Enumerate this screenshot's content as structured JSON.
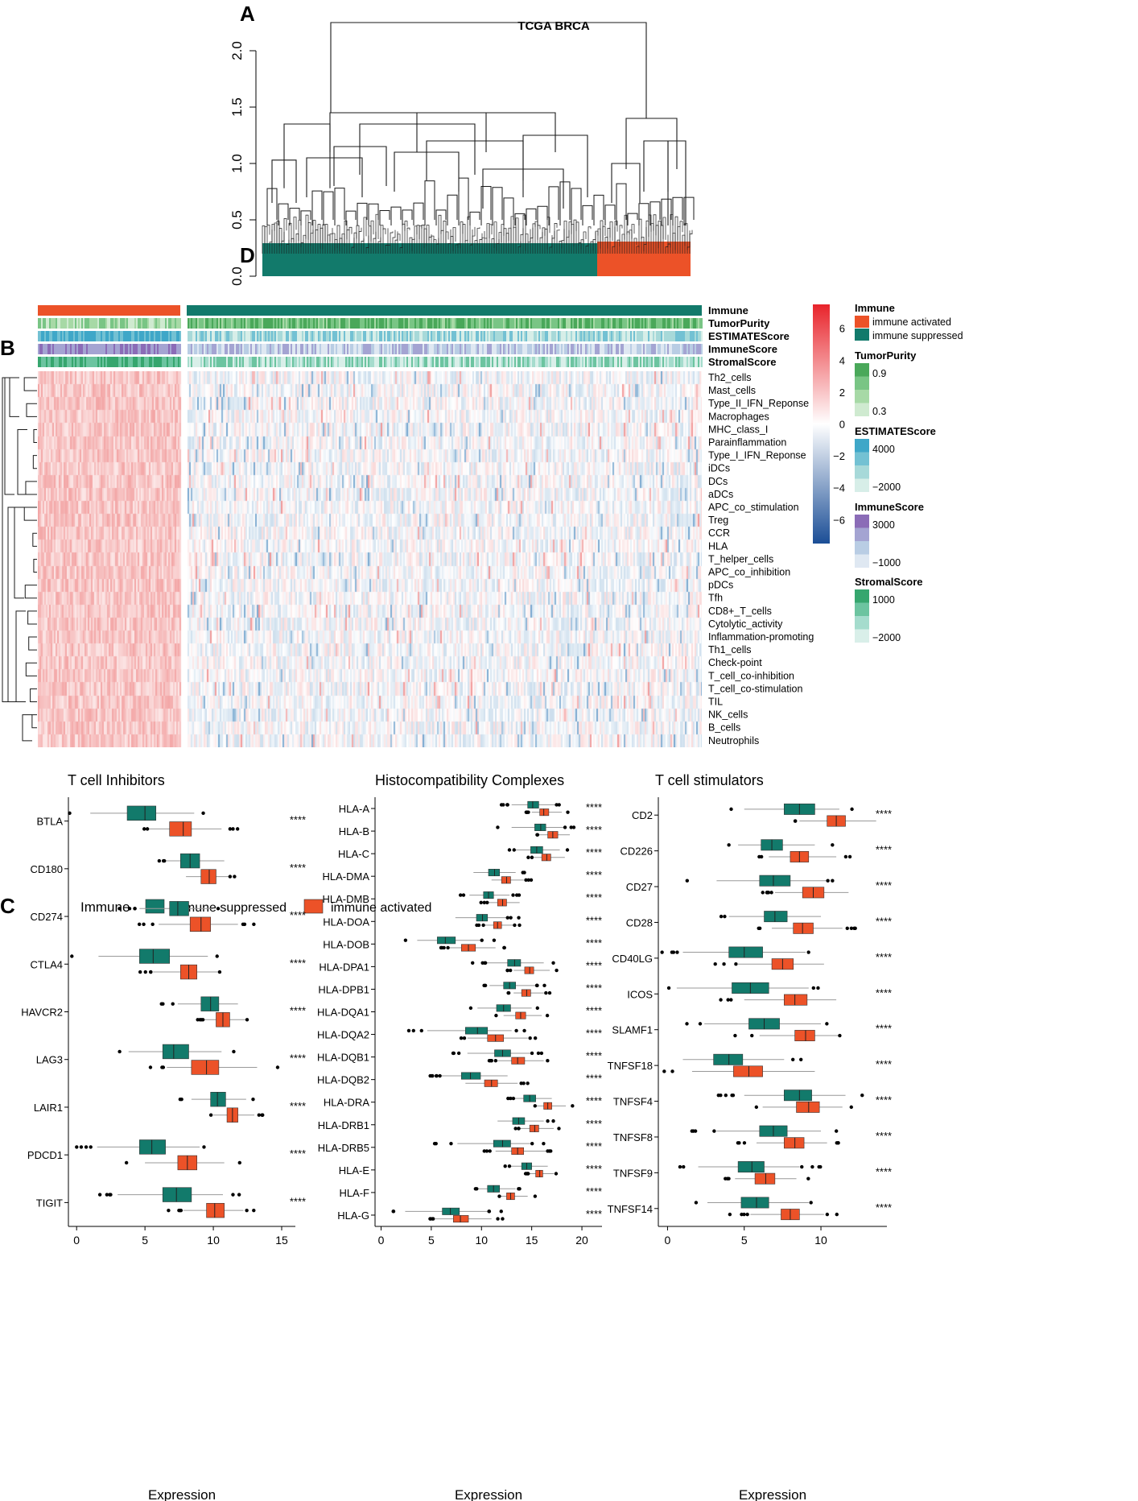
{
  "figure": {
    "panel_labels": [
      "A",
      "B",
      "C",
      "D"
    ],
    "colors": {
      "activated": "#ec5228",
      "suppressed": "#127a6b",
      "black": "#000000"
    }
  },
  "chart_data": [
    {
      "panel": "A",
      "type": "dendrogram",
      "title": "TCGA BRCA",
      "ylabel": "",
      "ylim": [
        0,
        2.3
      ],
      "y_ticks": [
        "0.0",
        "0.5",
        "1.0",
        "1.5",
        "2.0"
      ],
      "root_height": 2.25,
      "cluster_heights": [
        1.45,
        1.4
      ],
      "clusters": [
        {
          "name": "immune suppressed",
          "share": 0.78,
          "color": "#127a6b"
        },
        {
          "name": "immune activated",
          "share": 0.22,
          "color": "#ec5228"
        }
      ]
    },
    {
      "panel": "B",
      "type": "heatmap",
      "annotation_tracks": [
        "Immune",
        "TumorPurity",
        "ESTIMATEScore",
        "ImmuneScore",
        "StromalScore"
      ],
      "rows": [
        "Th2_cells",
        "Mast_cells",
        "Type_II_IFN_Reponse",
        "Macrophages",
        "MHC_class_I",
        "Parainflammation",
        "Type_I_IFN_Reponse",
        "iDCs",
        "DCs",
        "aDCs",
        "APC_co_stimulation",
        "Treg",
        "CCR",
        "HLA",
        "T_helper_cells",
        "APC_co_inhibition",
        "pDCs",
        "Tfh",
        "CD8+_T_cells",
        "Cytolytic_activity",
        "Inflammation-promoting",
        "Th1_cells",
        "Check-point",
        "T_cell_co-inhibition",
        "T_cell_co-stimulation",
        "TIL",
        "NK_cells",
        "B_cells",
        "Neutrophils"
      ],
      "colorbar_ticks": [
        "6",
        "4",
        "2",
        "0",
        "−2",
        "−4",
        "−6"
      ],
      "colorbar_range": [
        -7.5,
        7.5
      ],
      "legend": {
        "Immune": {
          "title": "Immune",
          "entries": [
            "immune activated",
            "immune suppressed"
          ]
        },
        "TumorPurity": {
          "title": "TumorPurity",
          "ticks": [
            "0.9",
            "0.3"
          ]
        },
        "ESTIMATEScore": {
          "title": "ESTIMATEScore",
          "ticks": [
            "4000",
            "−2000"
          ]
        },
        "ImmuneScore": {
          "title": "ImmuneScore",
          "ticks": [
            "3000",
            "−1000"
          ]
        },
        "StromalScore": {
          "title": "StromalScore",
          "ticks": [
            "1000",
            "−2000"
          ]
        }
      }
    },
    {
      "panel": "C",
      "type": "boxplot",
      "legend_title": "Immune",
      "legend_entries": [
        "immune suppressed",
        "immune activated"
      ],
      "xlabel": "Expression",
      "significance": "****",
      "subplots": [
        {
          "title": "T cell Inhibitors",
          "xlim": [
            -0.6,
            16
          ],
          "x_ticks": [
            0,
            5,
            10,
            15
          ],
          "genes": [
            {
              "name": "BTLA",
              "suppressed": [
                1,
                3.7,
                5,
                5.8,
                8.6
              ],
              "activated": [
                5.2,
                6.8,
                7.8,
                8.4,
                10.6
              ]
            },
            {
              "name": "CD180",
              "suppressed": [
                6.5,
                7.6,
                8.3,
                9,
                10.8
              ],
              "activated": [
                8,
                9.1,
                9.7,
                10.2,
                11.2
              ]
            },
            {
              "name": "CD274",
              "suppressed": [
                4.6,
                6.8,
                7.4,
                8.2,
                10
              ],
              "activated": [
                6,
                8.3,
                9.1,
                9.8,
                11.8
              ]
            },
            {
              "name": "CTLA4",
              "suppressed": [
                1.6,
                4.6,
                5.6,
                6.8,
                9.6
              ],
              "activated": [
                5.6,
                7.6,
                8.2,
                8.8,
                10.4
              ]
            },
            {
              "name": "HAVCR2",
              "suppressed": [
                7.4,
                9.1,
                9.8,
                10.4,
                11.8
              ],
              "activated": [
                9.3,
                10.2,
                10.7,
                11.2,
                12.4
              ]
            },
            {
              "name": "LAG3",
              "suppressed": [
                3.8,
                6.3,
                7.1,
                8.2,
                10.6
              ],
              "activated": [
                6.6,
                8.4,
                9.5,
                10.4,
                13.2
              ]
            },
            {
              "name": "LAIR1",
              "suppressed": [
                8.4,
                9.8,
                10.3,
                10.9,
                12.4
              ],
              "activated": [
                10,
                11,
                11.4,
                11.8,
                13
              ]
            },
            {
              "name": "PDCD1",
              "suppressed": [
                1.5,
                4.6,
                5.5,
                6.5,
                9
              ],
              "activated": [
                5,
                7.4,
                8.1,
                8.8,
                10.8
              ]
            },
            {
              "name": "TIGIT",
              "suppressed": [
                3,
                6.3,
                7.3,
                8.4,
                10.7
              ],
              "activated": [
                7.8,
                9.5,
                10.1,
                10.8,
                12.2
              ]
            }
          ]
        },
        {
          "title": "Histocompatibility Complexes",
          "xlim": [
            -0.6,
            22
          ],
          "x_ticks": [
            0,
            5,
            10,
            15,
            20
          ],
          "genes": [
            {
              "name": "HLA-A",
              "suppressed": [
                13,
                14.6,
                15.1,
                15.7,
                17.4
              ],
              "activated": [
                15,
                15.8,
                16.2,
                16.7,
                18
              ]
            },
            {
              "name": "HLA-B",
              "suppressed": [
                13,
                15.3,
                15.9,
                16.4,
                18.2
              ],
              "activated": [
                15.6,
                16.6,
                17.1,
                17.6,
                18.8
              ]
            },
            {
              "name": "HLA-C",
              "suppressed": [
                13.4,
                14.9,
                15.5,
                16.1,
                17.8
              ],
              "activated": [
                15.2,
                16,
                16.5,
                16.9,
                18.3
              ]
            },
            {
              "name": "HLA-DMA",
              "suppressed": [
                9.2,
                10.7,
                11.3,
                11.8,
                13.4
              ],
              "activated": [
                11,
                12,
                12.5,
                12.9,
                14.2
              ]
            },
            {
              "name": "HLA-DMB",
              "suppressed": [
                8.8,
                10.2,
                10.7,
                11.2,
                12.8
              ],
              "activated": [
                10.6,
                11.6,
                12.1,
                12.5,
                13.8
              ]
            },
            {
              "name": "HLA-DOA",
              "suppressed": [
                7.4,
                9.5,
                10.1,
                10.6,
                12.6
              ],
              "activated": [
                10.2,
                11.2,
                11.6,
                12,
                13.2
              ]
            },
            {
              "name": "HLA-DOB",
              "suppressed": [
                3.6,
                5.6,
                6.4,
                7.4,
                10
              ],
              "activated": [
                6.8,
                8,
                8.7,
                9.4,
                11.4
              ]
            },
            {
              "name": "HLA-DPA1",
              "suppressed": [
                10.4,
                12.6,
                13.3,
                13.9,
                16.2
              ],
              "activated": [
                13.2,
                14.3,
                14.8,
                15.2,
                16.8
              ]
            },
            {
              "name": "HLA-DPB1",
              "suppressed": [
                10.8,
                12.2,
                12.8,
                13.4,
                15.4
              ],
              "activated": [
                13.2,
                14,
                14.5,
                14.9,
                16.2
              ]
            },
            {
              "name": "HLA-DQA1",
              "suppressed": [
                9.6,
                11.5,
                12.2,
                12.9,
                15
              ],
              "activated": [
                12.2,
                13.4,
                13.9,
                14.4,
                16
              ]
            },
            {
              "name": "HLA-DQA2",
              "suppressed": [
                4.6,
                8.4,
                9.6,
                10.6,
                13
              ],
              "activated": [
                8.6,
                10.6,
                11.4,
                12.2,
                14.6
              ]
            },
            {
              "name": "HLA-DQB1",
              "suppressed": [
                8.6,
                11.3,
                12.1,
                12.9,
                15
              ],
              "activated": [
                11.6,
                13,
                13.6,
                14.3,
                16.2
              ]
            },
            {
              "name": "HLA-DQB2",
              "suppressed": [
                6,
                8,
                8.9,
                9.9,
                12.6
              ],
              "activated": [
                8.4,
                10.3,
                11,
                11.6,
                13.6
              ]
            },
            {
              "name": "HLA-DRA",
              "suppressed": [
                13.2,
                14.2,
                14.8,
                15.4,
                17
              ],
              "activated": [
                15.4,
                16.2,
                16.6,
                17,
                18.4
              ]
            },
            {
              "name": "HLA-DRB1",
              "suppressed": [
                11.6,
                13.1,
                13.7,
                14.3,
                16.2
              ],
              "activated": [
                13.8,
                14.8,
                15.3,
                15.7,
                17.2
              ]
            },
            {
              "name": "HLA-DRB5",
              "suppressed": [
                7.6,
                11.2,
                12.1,
                12.9,
                15
              ],
              "activated": [
                11.4,
                13,
                13.6,
                14.2,
                16.4
              ]
            },
            {
              "name": "HLA-E",
              "suppressed": [
                12.8,
                14,
                14.5,
                15,
                16.6
              ],
              "activated": [
                14.8,
                15.4,
                15.8,
                16.1,
                17.2
              ]
            },
            {
              "name": "HLA-F",
              "suppressed": [
                9.6,
                10.6,
                11.2,
                11.8,
                13.4
              ],
              "activated": [
                11.8,
                12.5,
                12.9,
                13.3,
                14.6
              ]
            },
            {
              "name": "HLA-G",
              "suppressed": [
                2.4,
                6.1,
                6.9,
                7.8,
                10.6
              ],
              "activated": [
                5.4,
                7.2,
                7.9,
                8.7,
                11
              ]
            }
          ]
        },
        {
          "title": "T cell stimulators",
          "xlim": [
            -0.6,
            14.3
          ],
          "x_ticks": [
            0,
            5,
            10
          ],
          "genes": [
            {
              "name": "CD2",
              "suppressed": [
                5,
                7.6,
                8.6,
                9.6,
                11.2
              ],
              "activated": [
                8.6,
                10.4,
                11,
                11.6,
                13.6
              ]
            },
            {
              "name": "CD226",
              "suppressed": [
                4.6,
                6.1,
                6.8,
                7.5,
                9.6
              ],
              "activated": [
                6.6,
                8,
                8.6,
                9.2,
                11
              ]
            },
            {
              "name": "CD27",
              "suppressed": [
                3.2,
                6,
                6.9,
                8,
                10.4
              ],
              "activated": [
                7,
                8.8,
                9.5,
                10.2,
                11.8
              ]
            },
            {
              "name": "CD28",
              "suppressed": [
                4,
                6.3,
                7,
                7.8,
                10
              ],
              "activated": [
                6.8,
                8.2,
                8.8,
                9.5,
                11.4
              ]
            },
            {
              "name": "CD40LG",
              "suppressed": [
                1,
                4,
                5,
                6.2,
                9
              ],
              "activated": [
                4.6,
                6.8,
                7.5,
                8.2,
                10.2
              ]
            },
            {
              "name": "ICOS",
              "suppressed": [
                0.6,
                4.2,
                5.4,
                6.6,
                9.2
              ],
              "activated": [
                5,
                7.6,
                8.3,
                9.1,
                11
              ]
            },
            {
              "name": "SLAMF1",
              "suppressed": [
                2.4,
                5.3,
                6.3,
                7.3,
                10
              ],
              "activated": [
                6,
                8.3,
                9,
                9.6,
                11.2
              ]
            },
            {
              "name": "TNFSF18",
              "suppressed": [
                1,
                3,
                4,
                4.9,
                7.6
              ],
              "activated": [
                1.6,
                4.3,
                5.3,
                6.2,
                9.6
              ]
            },
            {
              "name": "TNFSF4",
              "suppressed": [
                5,
                7.6,
                8.6,
                9.4,
                11.6
              ],
              "activated": [
                6.2,
                8.4,
                9.2,
                9.9,
                11.4
              ]
            },
            {
              "name": "TNFSF8",
              "suppressed": [
                3.2,
                6,
                6.9,
                7.8,
                10
              ],
              "activated": [
                5.8,
                7.6,
                8.3,
                8.9,
                10.4
              ]
            },
            {
              "name": "TNFSF9",
              "suppressed": [
                2,
                4.6,
                5.5,
                6.3,
                8.6
              ],
              "activated": [
                4.4,
                5.7,
                6.4,
                7,
                8.4
              ]
            },
            {
              "name": "TNFSF14",
              "suppressed": [
                2.6,
                4.8,
                5.8,
                6.6,
                9.2
              ],
              "activated": [
                5.4,
                7.4,
                8,
                8.6,
                10.2
              ]
            }
          ]
        }
      ]
    }
  ]
}
